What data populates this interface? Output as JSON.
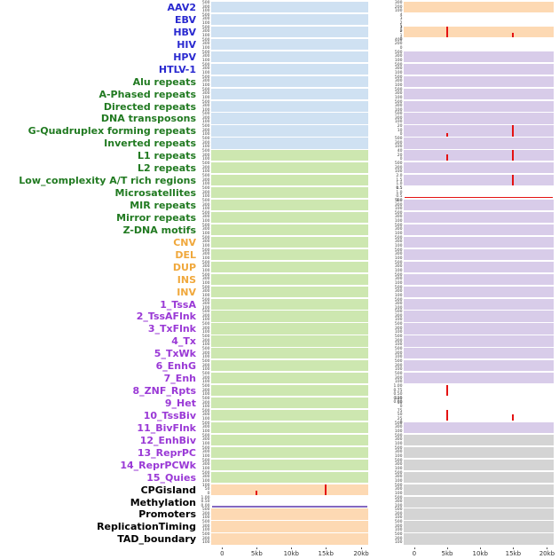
{
  "colors": {
    "panel_blue": "#cfe1f2",
    "panel_green": "#cde7b0",
    "panel_peach": "#fdd9b3",
    "panel_purple": "#d8cce9",
    "panel_gray": "#d4d4d4",
    "label_virus": "#2a2ad0",
    "label_repeat": "#217a21",
    "label_sv": "#f0a83c",
    "label_chromatin": "#9a39d6",
    "label_other": "#000000",
    "spike_red": "#e41212",
    "baseline_purple": "#8468c0",
    "axis_text": "#333333"
  },
  "chart_data": {
    "type": "bar",
    "title": "",
    "x_ticks": [
      "0",
      "5kb",
      "10kb",
      "15kb",
      "20kb"
    ],
    "default_yticks": [
      "500",
      "300",
      "100"
    ],
    "rows": [
      {
        "label": "AAV2",
        "group": "virus",
        "left": {
          "fill": "blue"
        },
        "right": {
          "fill": "peach",
          "ticks": [
            "300",
            "200",
            "100"
          ]
        }
      },
      {
        "label": "EBV",
        "group": "virus",
        "left": {
          "fill": "blue"
        },
        "right": {
          "fill": "white",
          "ticks": [
            "4",
            "3",
            "2",
            "1",
            "0"
          ]
        }
      },
      {
        "label": "HBV",
        "group": "virus",
        "left": {
          "fill": "blue"
        },
        "right": {
          "fill": "peach",
          "ticks": [
            "3",
            "2",
            "1",
            "0"
          ],
          "spikes": [
            {
              "at": "5kb",
              "h": 1.0
            },
            {
              "at": "15kb",
              "h": 0.45
            }
          ]
        }
      },
      {
        "label": "HIV",
        "group": "virus",
        "left": {
          "fill": "blue"
        },
        "right": {
          "fill": "white",
          "ticks": [
            "400",
            "200",
            "0"
          ]
        }
      },
      {
        "label": "HPV",
        "group": "virus",
        "left": {
          "fill": "blue"
        },
        "right": {
          "fill": "purple"
        }
      },
      {
        "label": "HTLV-1",
        "group": "virus",
        "left": {
          "fill": "blue"
        },
        "right": {
          "fill": "purple"
        }
      },
      {
        "label": "Alu repeats",
        "group": "repeat",
        "left": {
          "fill": "blue"
        },
        "right": {
          "fill": "purple"
        }
      },
      {
        "label": "A-Phased repeats",
        "group": "repeat",
        "left": {
          "fill": "blue"
        },
        "right": {
          "fill": "purple"
        }
      },
      {
        "label": "Directed repeats",
        "group": "repeat",
        "left": {
          "fill": "blue"
        },
        "right": {
          "fill": "purple"
        }
      },
      {
        "label": "DNA transposons",
        "group": "repeat",
        "left": {
          "fill": "blue"
        },
        "right": {
          "fill": "purple"
        }
      },
      {
        "label": "G-Quadruplex forming repeats",
        "group": "repeat",
        "left": {
          "fill": "blue"
        },
        "right": {
          "fill": "purple",
          "ticks": [
            "20",
            "10",
            "0"
          ],
          "spikes": [
            {
              "at": "5kb",
              "h": 0.3
            },
            {
              "at": "15kb",
              "h": 1.0
            }
          ]
        }
      },
      {
        "label": "Inverted repeats",
        "group": "repeat",
        "left": {
          "fill": "blue"
        },
        "right": {
          "fill": "purple"
        }
      },
      {
        "label": "L1 repeats",
        "group": "repeat",
        "left": {
          "fill": "green"
        },
        "right": {
          "fill": "purple",
          "ticks": [
            "40",
            "20",
            "0"
          ],
          "spikes": [
            {
              "at": "5kb",
              "h": 0.6
            },
            {
              "at": "15kb",
              "h": 1.0
            }
          ]
        }
      },
      {
        "label": "L2 repeats",
        "group": "repeat",
        "left": {
          "fill": "green"
        },
        "right": {
          "fill": "purple"
        }
      },
      {
        "label": "Low_complexity A/T rich regions",
        "group": "repeat",
        "left": {
          "fill": "green"
        },
        "right": {
          "fill": "purple",
          "ticks": [
            "2.0",
            "1.5",
            "1.0",
            "0.5"
          ],
          "spikes": [
            {
              "at": "15kb",
              "h": 1.0
            }
          ]
        }
      },
      {
        "label": "Microsatellites",
        "group": "repeat",
        "left": {
          "fill": "green"
        },
        "right": {
          "fill": "white",
          "ticks": [
            "1.5",
            "1.0",
            "0.5",
            "0.0"
          ],
          "baseline": "red"
        }
      },
      {
        "label": "MIR repeats",
        "group": "repeat",
        "left": {
          "fill": "green"
        },
        "right": {
          "fill": "purple"
        }
      },
      {
        "label": "Mirror repeats",
        "group": "repeat",
        "left": {
          "fill": "green"
        },
        "right": {
          "fill": "purple"
        }
      },
      {
        "label": "Z-DNA motifs",
        "group": "repeat",
        "left": {
          "fill": "green"
        },
        "right": {
          "fill": "purple"
        }
      },
      {
        "label": "CNV",
        "group": "sv",
        "left": {
          "fill": "green"
        },
        "right": {
          "fill": "purple"
        }
      },
      {
        "label": "DEL",
        "group": "sv",
        "left": {
          "fill": "green"
        },
        "right": {
          "fill": "purple"
        }
      },
      {
        "label": "DUP",
        "group": "sv",
        "left": {
          "fill": "green"
        },
        "right": {
          "fill": "purple"
        }
      },
      {
        "label": "INS",
        "group": "sv",
        "left": {
          "fill": "green"
        },
        "right": {
          "fill": "purple"
        }
      },
      {
        "label": "INV",
        "group": "sv",
        "left": {
          "fill": "green"
        },
        "right": {
          "fill": "purple"
        }
      },
      {
        "label": "1_TssA",
        "group": "chromatin",
        "left": {
          "fill": "green"
        },
        "right": {
          "fill": "purple"
        }
      },
      {
        "label": "2_TssAFlnk",
        "group": "chromatin",
        "left": {
          "fill": "green"
        },
        "right": {
          "fill": "purple"
        }
      },
      {
        "label": "3_TxFlnk",
        "group": "chromatin",
        "left": {
          "fill": "green"
        },
        "right": {
          "fill": "purple"
        }
      },
      {
        "label": "4_Tx",
        "group": "chromatin",
        "left": {
          "fill": "green"
        },
        "right": {
          "fill": "purple"
        }
      },
      {
        "label": "5_TxWk",
        "group": "chromatin",
        "left": {
          "fill": "green"
        },
        "right": {
          "fill": "purple"
        }
      },
      {
        "label": "6_EnhG",
        "group": "chromatin",
        "left": {
          "fill": "green"
        },
        "right": {
          "fill": "purple"
        }
      },
      {
        "label": "7_Enh",
        "group": "chromatin",
        "left": {
          "fill": "green"
        },
        "right": {
          "fill": "purple"
        }
      },
      {
        "label": "8_ZNF_Rpts",
        "group": "chromatin",
        "left": {
          "fill": "green"
        },
        "right": {
          "fill": "white",
          "ticks": [
            "1.00",
            "0.75",
            "0.50",
            "0.25",
            "0.00"
          ],
          "spikes": [
            {
              "at": "5kb",
              "h": 1.0
            }
          ]
        }
      },
      {
        "label": "9_Het",
        "group": "chromatin",
        "left": {
          "fill": "green"
        },
        "right": {
          "fill": "white",
          "ticks": [
            "100",
            "50",
            "0"
          ]
        }
      },
      {
        "label": "10_TssBiv",
        "group": "chromatin",
        "left": {
          "fill": "green"
        },
        "right": {
          "fill": "white",
          "ticks": [
            "75",
            "50",
            "25",
            "0"
          ],
          "spikes": [
            {
              "at": "5kb",
              "h": 1.0
            },
            {
              "at": "15kb",
              "h": 0.55
            }
          ]
        }
      },
      {
        "label": "11_BivFlnk",
        "group": "chromatin",
        "left": {
          "fill": "green"
        },
        "right": {
          "fill": "purple"
        }
      },
      {
        "label": "12_EnhBiv",
        "group": "chromatin",
        "left": {
          "fill": "green"
        },
        "right": {
          "fill": "gray"
        }
      },
      {
        "label": "13_ReprPC",
        "group": "chromatin",
        "left": {
          "fill": "green"
        },
        "right": {
          "fill": "gray"
        }
      },
      {
        "label": "14_ReprPCWk",
        "group": "chromatin",
        "left": {
          "fill": "green"
        },
        "right": {
          "fill": "gray"
        }
      },
      {
        "label": "15_Quies",
        "group": "chromatin",
        "left": {
          "fill": "green"
        },
        "right": {
          "fill": "gray"
        }
      },
      {
        "label": "CPGisland",
        "group": "other",
        "left": {
          "fill": "peach",
          "ticks": [
            "100",
            "50",
            "0"
          ],
          "spikes": [
            {
              "at": "5kb",
              "h": 0.35
            },
            {
              "at": "15kb",
              "h": 1.0
            }
          ]
        },
        "right": {
          "fill": "gray"
        }
      },
      {
        "label": "Methylation",
        "group": "other",
        "left": {
          "fill": "white",
          "ticks": [
            "1.00",
            "0.50",
            "0.00"
          ],
          "baseline": "purple"
        },
        "right": {
          "fill": "gray"
        }
      },
      {
        "label": "Promoters",
        "group": "other",
        "left": {
          "fill": "peach"
        },
        "right": {
          "fill": "gray"
        }
      },
      {
        "label": "ReplicationTiming",
        "group": "other",
        "left": {
          "fill": "peach"
        },
        "right": {
          "fill": "gray"
        }
      },
      {
        "label": "TAD_boundary",
        "group": "other",
        "left": {
          "fill": "peach"
        },
        "right": {
          "fill": "gray"
        }
      }
    ]
  }
}
